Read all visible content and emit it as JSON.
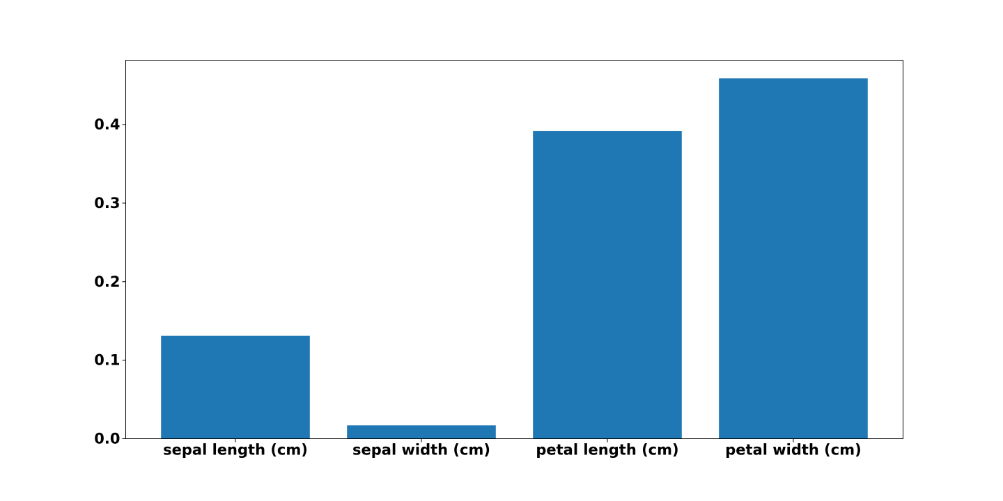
{
  "chart_data": {
    "type": "bar",
    "categories": [
      "sepal length (cm)",
      "sepal width (cm)",
      "petal length (cm)",
      "petal width (cm)"
    ],
    "values": [
      0.131,
      0.017,
      0.392,
      0.459
    ],
    "title": "",
    "xlabel": "",
    "ylabel": "",
    "ylim": [
      0,
      0.482
    ],
    "yticks": [
      0.0,
      0.1,
      0.2,
      0.3,
      0.4
    ],
    "ytick_labels": [
      "0.0",
      "0.1",
      "0.2",
      "0.3",
      "0.4"
    ],
    "grid": false,
    "bar_color": "#1f77b4"
  }
}
